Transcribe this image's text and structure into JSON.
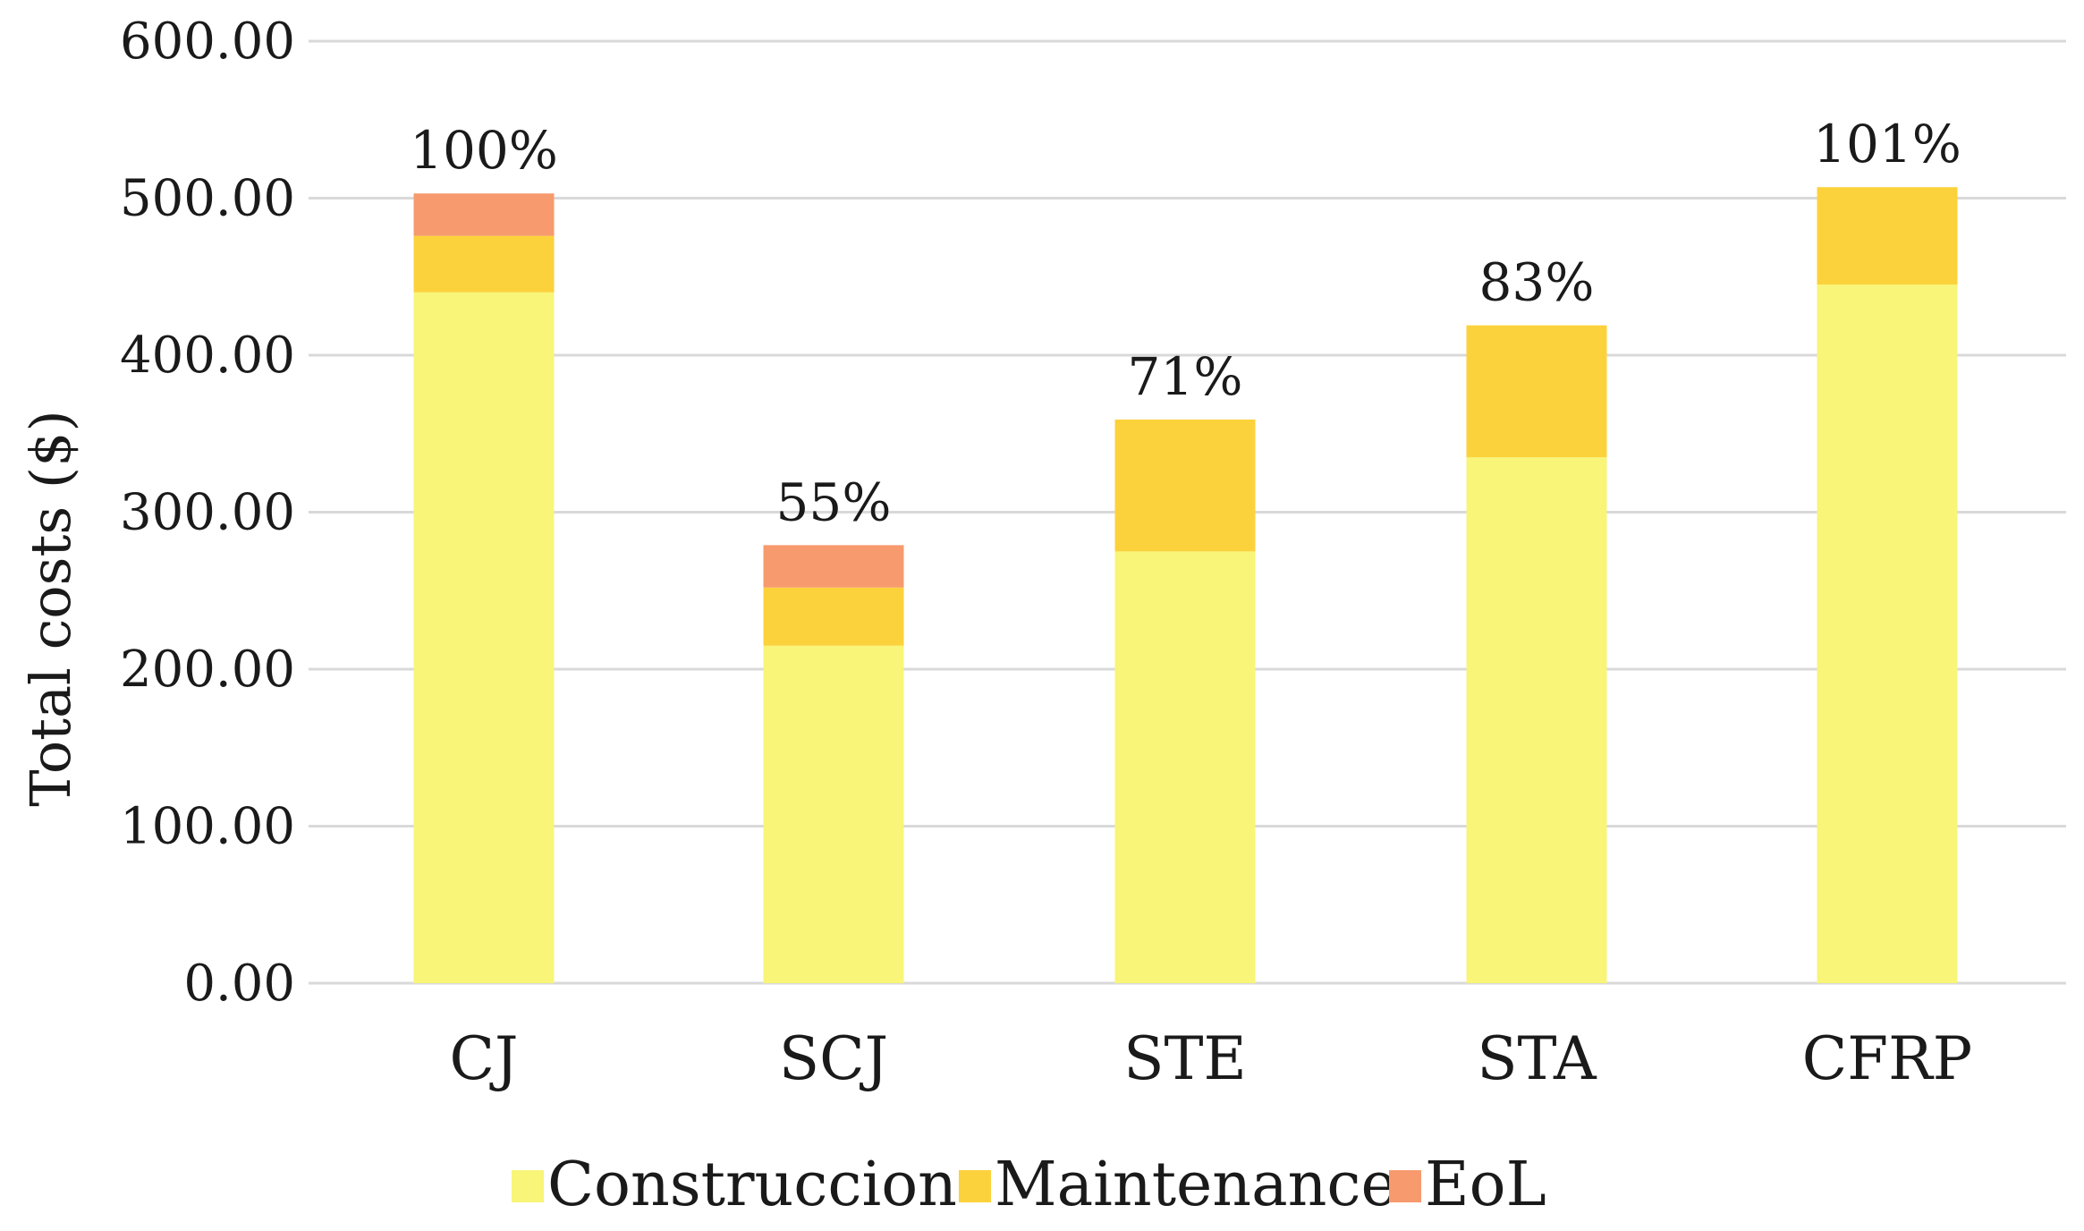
{
  "chart_data": {
    "type": "bar",
    "stacked": true,
    "ylabel": "Total costs ($)",
    "xlabel": "",
    "ylim": [
      0,
      600
    ],
    "yticks": [
      0,
      100,
      200,
      300,
      400,
      500,
      600
    ],
    "ytick_labels": [
      "0.00",
      "100.00",
      "200.00",
      "300.00",
      "400.00",
      "500.00",
      "600.00"
    ],
    "grid": "horizontal",
    "legend_position": "bottom",
    "categories": [
      "CJ",
      "SCJ",
      "STE",
      "STA",
      "CFRP"
    ],
    "series": [
      {
        "name": "Construccion",
        "color": "#f8f578",
        "values": [
          440,
          215,
          275,
          335,
          445
        ]
      },
      {
        "name": "Maintenance",
        "color": "#fcd23c",
        "values": [
          36,
          37,
          84,
          84,
          62
        ]
      },
      {
        "name": "EoL",
        "color": "#f79a6e",
        "values": [
          27,
          27,
          0,
          0,
          0
        ]
      }
    ],
    "data_labels": [
      "100%",
      "55%",
      "71%",
      "83%",
      "101%"
    ]
  }
}
